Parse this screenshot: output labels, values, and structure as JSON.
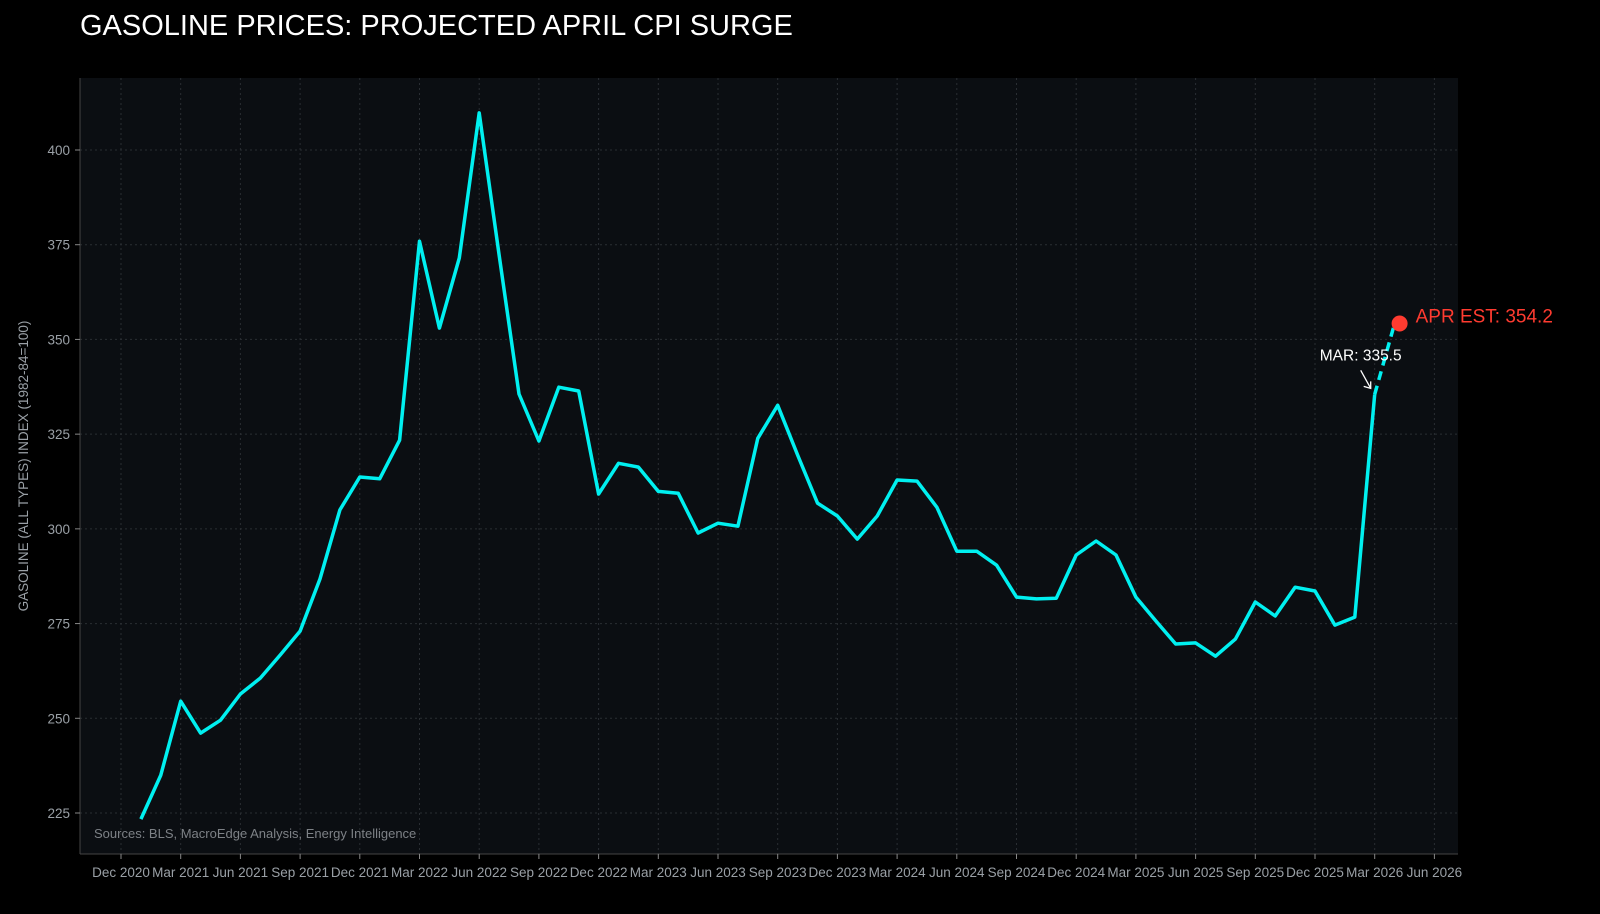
{
  "chart_data": {
    "type": "line",
    "title": "GASOLINE PRICES: PROJECTED APRIL CPI SURGE",
    "xlabel": "",
    "ylabel": "GASOLINE (ALL TYPES) INDEX (1982-84=100)",
    "ylim": [
      218,
      423
    ],
    "xlim": [
      "2020-11",
      "2026-07"
    ],
    "grid": true,
    "y_ticks": [
      225,
      250,
      275,
      300,
      325,
      350,
      375,
      400
    ],
    "x_ticks": [
      {
        "date": "2020-12",
        "label": "Dec 2020"
      },
      {
        "date": "2021-03",
        "label": "Mar 2021"
      },
      {
        "date": "2021-06",
        "label": "Jun 2021"
      },
      {
        "date": "2021-09",
        "label": "Sep 2021"
      },
      {
        "date": "2021-12",
        "label": "Dec 2021"
      },
      {
        "date": "2022-03",
        "label": "Mar 2022"
      },
      {
        "date": "2022-06",
        "label": "Jun 2022"
      },
      {
        "date": "2022-09",
        "label": "Sep 2022"
      },
      {
        "date": "2022-12",
        "label": "Dec 2022"
      },
      {
        "date": "2023-03",
        "label": "Mar 2023"
      },
      {
        "date": "2023-06",
        "label": "Jun 2023"
      },
      {
        "date": "2023-09",
        "label": "Sep 2023"
      },
      {
        "date": "2023-12",
        "label": "Dec 2023"
      },
      {
        "date": "2024-03",
        "label": "Mar 2024"
      },
      {
        "date": "2024-06",
        "label": "Jun 2024"
      },
      {
        "date": "2024-09",
        "label": "Sep 2024"
      },
      {
        "date": "2024-12",
        "label": "Dec 2024"
      },
      {
        "date": "2025-03",
        "label": "Mar 2025"
      },
      {
        "date": "2025-06",
        "label": "Jun 2025"
      },
      {
        "date": "2025-09",
        "label": "Sep 2025"
      },
      {
        "date": "2025-12",
        "label": "Dec 2025"
      },
      {
        "date": "2026-03",
        "label": "Mar 2026"
      },
      {
        "date": "2026-06",
        "label": "Jun 2026"
      }
    ],
    "series": [
      {
        "color": "#00f0f0",
        "x": [
          "2021-01",
          "2021-02",
          "2021-03",
          "2021-04",
          "2021-05",
          "2021-06",
          "2021-07",
          "2021-08",
          "2021-09",
          "2021-10",
          "2021-11",
          "2021-12",
          "2022-01",
          "2022-02",
          "2022-03",
          "2022-04",
          "2022-05",
          "2022-06",
          "2022-07",
          "2022-08",
          "2022-09",
          "2022-10",
          "2022-11",
          "2022-12",
          "2023-01",
          "2023-02",
          "2023-03",
          "2023-04",
          "2023-05",
          "2023-06",
          "2023-07",
          "2023-08",
          "2023-09",
          "2023-10",
          "2023-11",
          "2023-12",
          "2024-01",
          "2024-02",
          "2024-03",
          "2024-04",
          "2024-05",
          "2024-06",
          "2024-07",
          "2024-08",
          "2024-09",
          "2024-10",
          "2024-11",
          "2024-12",
          "2025-01",
          "2025-02",
          "2025-03",
          "2025-04",
          "2025-05",
          "2025-06",
          "2025-07",
          "2025-08",
          "2025-09",
          "2025-10",
          "2025-11",
          "2025-12",
          "2026-01",
          "2026-02",
          "2026-03"
        ],
        "values": [
          223.4,
          235.0,
          254.5,
          246.1,
          249.5,
          256.4,
          260.6,
          266.7,
          273.0,
          286.8,
          305.0,
          313.7,
          313.2,
          323.4,
          375.9,
          353.0,
          371.5,
          409.8,
          372.3,
          335.6,
          323.2,
          337.4,
          336.4,
          309.2,
          317.3,
          316.3,
          309.9,
          309.4,
          298.9,
          301.5,
          300.7,
          323.9,
          332.6,
          319.5,
          306.8,
          303.4,
          297.3,
          303.4,
          312.9,
          312.6,
          305.7,
          294.1,
          294.1,
          290.4,
          282.0,
          281.5,
          281.7,
          293.1,
          296.8,
          293.1,
          282.0,
          275.7,
          269.6,
          269.9,
          266.4,
          270.9,
          280.7,
          277.0,
          284.6,
          283.6,
          274.6,
          276.7,
          335.5
        ]
      },
      {
        "style": "dashed",
        "color": "#00f0f0",
        "x": [
          "2026-03",
          "2026-04"
        ],
        "values": [
          335.5,
          354.2
        ]
      }
    ],
    "annotations": [
      {
        "text": "MAR: 335.5",
        "x": "2026-03",
        "y": 335.5,
        "color": "#ffffff"
      },
      {
        "text": "APR EST: 354.2",
        "x": "2026-04",
        "y": 354.2,
        "color": "#ff3b30"
      }
    ],
    "source_note": "Sources: BLS, MacroEdge Analysis, Energy Intelligence",
    "colors": {
      "background": "#000000",
      "plot_background": "#0b0e12",
      "line": "#00f0f0",
      "estimate": "#ff3b30"
    }
  }
}
